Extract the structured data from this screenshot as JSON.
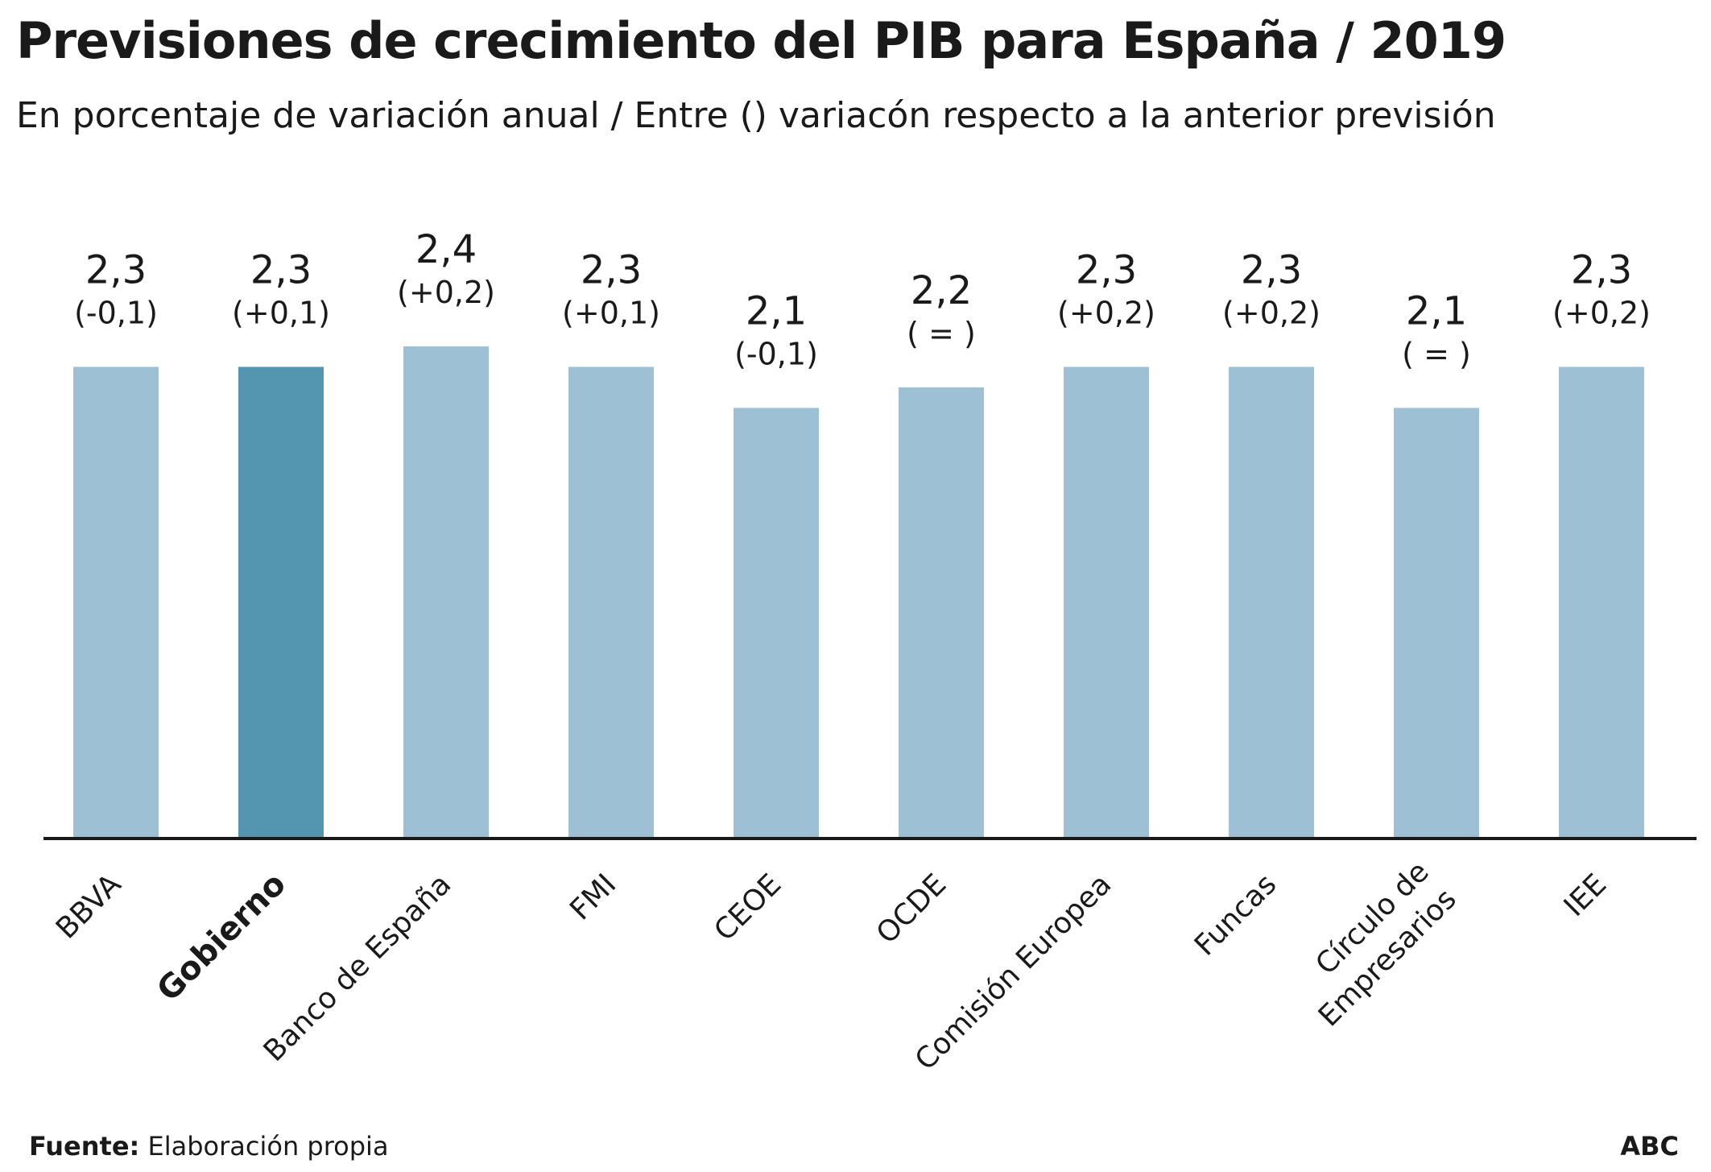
{
  "chart_data": {
    "type": "bar",
    "title": "Previsiones de crecimiento del PIB para España / 2019",
    "subtitle": "En porcentaje de variación anual / Entre () variacón respecto a la anterior previsión",
    "categories": [
      "BBVA",
      "Gobierno",
      "Banco de España",
      "FMI",
      "CEOE",
      "OCDE",
      "Comisión Europea",
      "Funcas",
      "Círculo de Empresarios",
      "IEE"
    ],
    "category_lines": [
      [
        "BBVA"
      ],
      [
        "Gobierno"
      ],
      [
        "Banco de España"
      ],
      [
        "FMI"
      ],
      [
        "CEOE"
      ],
      [
        "OCDE"
      ],
      [
        "Comisión Europea"
      ],
      [
        "Funcas"
      ],
      [
        "Círculo de",
        "Empresarios"
      ],
      [
        "IEE"
      ]
    ],
    "values": [
      2.3,
      2.3,
      2.4,
      2.3,
      2.1,
      2.2,
      2.3,
      2.3,
      2.1,
      2.3
    ],
    "value_labels": [
      "2,3",
      "2,3",
      "2,4",
      "2,3",
      "2,1",
      "2,2",
      "2,3",
      "2,3",
      "2,1",
      "2,3"
    ],
    "change_labels": [
      "(-0,1)",
      "(+0,1)",
      "(+0,2)",
      "(+0,1)",
      "(-0,1)",
      "( = )",
      "(+0,2)",
      "(+0,2)",
      "( = )",
      "(+0,2)"
    ],
    "highlight": "Gobierno",
    "colors": {
      "bar": "#9dc0d5",
      "highlight": "#5496b0",
      "axis": "#1a1a1a"
    },
    "ylim": [
      0,
      2.4
    ],
    "grid": false,
    "legend": "none"
  },
  "footer": {
    "source_label": "Fuente:",
    "source_text": " Elaboración propia",
    "brand": "ABC"
  }
}
